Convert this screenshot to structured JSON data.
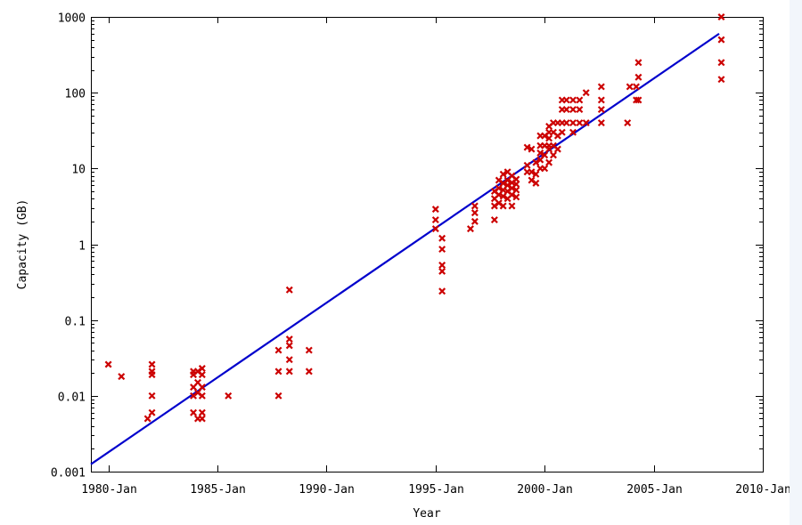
{
  "chart_data": {
    "type": "scatter",
    "title": "",
    "xlabel": "Year",
    "ylabel": "Capacity (GB)",
    "xlim": [
      1979.2,
      2010.0
    ],
    "ylim": [
      0.001,
      1000
    ],
    "y_scale": "log",
    "grid": false,
    "legend": "none",
    "x_ticks": [
      {
        "value": 1980,
        "label": "1980-Jan"
      },
      {
        "value": 1985,
        "label": "1985-Jan"
      },
      {
        "value": 1990,
        "label": "1990-Jan"
      },
      {
        "value": 1995,
        "label": "1995-Jan"
      },
      {
        "value": 2000,
        "label": "2000-Jan"
      },
      {
        "value": 2005,
        "label": "2005-Jan"
      },
      {
        "value": 2010,
        "label": "2010-Jan"
      }
    ],
    "y_ticks": [
      {
        "value": 0.001,
        "label": "0.001"
      },
      {
        "value": 0.01,
        "label": "0.01"
      },
      {
        "value": 0.1,
        "label": "0.1"
      },
      {
        "value": 1,
        "label": "1"
      },
      {
        "value": 10,
        "label": "10"
      },
      {
        "value": 100,
        "label": "100"
      },
      {
        "value": 1000,
        "label": "1000"
      }
    ],
    "series": [
      {
        "type": "scatter",
        "marker": "x",
        "color": "#cc0000",
        "points": [
          [
            1980.0,
            0.026
          ],
          [
            1980.6,
            0.018
          ],
          [
            1981.8,
            0.005
          ],
          [
            1982.0,
            0.006
          ],
          [
            1982.0,
            0.01
          ],
          [
            1982.0,
            0.019
          ],
          [
            1982.0,
            0.021
          ],
          [
            1982.0,
            0.026
          ],
          [
            1983.9,
            0.006
          ],
          [
            1983.9,
            0.01
          ],
          [
            1983.9,
            0.013
          ],
          [
            1983.9,
            0.019
          ],
          [
            1983.9,
            0.021
          ],
          [
            1984.1,
            0.005
          ],
          [
            1984.1,
            0.011
          ],
          [
            1984.1,
            0.015
          ],
          [
            1984.1,
            0.021
          ],
          [
            1984.3,
            0.005
          ],
          [
            1984.3,
            0.006
          ],
          [
            1984.3,
            0.01
          ],
          [
            1984.3,
            0.013
          ],
          [
            1984.3,
            0.019
          ],
          [
            1984.3,
            0.023
          ],
          [
            1985.5,
            0.01
          ],
          [
            1987.8,
            0.01
          ],
          [
            1987.8,
            0.021
          ],
          [
            1987.8,
            0.04
          ],
          [
            1988.3,
            0.021
          ],
          [
            1988.3,
            0.03
          ],
          [
            1988.3,
            0.046
          ],
          [
            1988.3,
            0.056
          ],
          [
            1988.3,
            0.25
          ],
          [
            1989.2,
            0.021
          ],
          [
            1989.2,
            0.04
          ],
          [
            1995.0,
            1.6
          ],
          [
            1995.0,
            2.1
          ],
          [
            1995.0,
            2.9
          ],
          [
            1995.3,
            0.24
          ],
          [
            1995.3,
            0.44
          ],
          [
            1995.3,
            0.53
          ],
          [
            1995.3,
            0.86
          ],
          [
            1995.3,
            1.2
          ],
          [
            1996.6,
            1.6
          ],
          [
            1996.8,
            2.0
          ],
          [
            1996.8,
            2.6
          ],
          [
            1996.8,
            3.2
          ],
          [
            1997.7,
            2.1
          ],
          [
            1997.7,
            3.2
          ],
          [
            1997.7,
            4.0
          ],
          [
            1997.7,
            5.0
          ],
          [
            1997.9,
            3.5
          ],
          [
            1997.9,
            4.5
          ],
          [
            1997.9,
            5.5
          ],
          [
            1997.9,
            7.0
          ],
          [
            1998.1,
            3.2
          ],
          [
            1998.1,
            4.3
          ],
          [
            1998.1,
            5.2
          ],
          [
            1998.1,
            6.4
          ],
          [
            1998.1,
            8.4
          ],
          [
            1998.3,
            4.0
          ],
          [
            1998.3,
            5.0
          ],
          [
            1998.3,
            6.0
          ],
          [
            1998.3,
            7.0
          ],
          [
            1998.3,
            9.0
          ],
          [
            1998.5,
            3.2
          ],
          [
            1998.5,
            4.5
          ],
          [
            1998.5,
            5.5
          ],
          [
            1998.5,
            6.5
          ],
          [
            1998.5,
            8.0
          ],
          [
            1998.7,
            4.2
          ],
          [
            1998.7,
            5.2
          ],
          [
            1998.7,
            6.2
          ],
          [
            1998.7,
            7.2
          ],
          [
            1999.2,
            9.0
          ],
          [
            1999.2,
            11.0
          ],
          [
            1999.2,
            19.0
          ],
          [
            1999.4,
            7.0
          ],
          [
            1999.4,
            9.0
          ],
          [
            1999.4,
            18.0
          ],
          [
            1999.6,
            6.4
          ],
          [
            1999.6,
            8.4
          ],
          [
            1999.6,
            12.0
          ],
          [
            1999.8,
            10.0
          ],
          [
            1999.8,
            13.0
          ],
          [
            1999.8,
            16.0
          ],
          [
            1999.8,
            20.0
          ],
          [
            1999.8,
            27.0
          ],
          [
            2000.0,
            10.0
          ],
          [
            2000.0,
            15.0
          ],
          [
            2000.0,
            20.0
          ],
          [
            2000.0,
            27.0
          ],
          [
            2000.2,
            12.0
          ],
          [
            2000.2,
            18.0
          ],
          [
            2000.2,
            20.0
          ],
          [
            2000.2,
            25.0
          ],
          [
            2000.2,
            30.0
          ],
          [
            2000.2,
            36.0
          ],
          [
            2000.4,
            15.0
          ],
          [
            2000.4,
            20.0
          ],
          [
            2000.4,
            30.0
          ],
          [
            2000.4,
            40.0
          ],
          [
            2000.6,
            18.0
          ],
          [
            2000.6,
            27.0
          ],
          [
            2000.6,
            40.0
          ],
          [
            2000.8,
            30.0
          ],
          [
            2000.8,
            40.0
          ],
          [
            2000.8,
            60.0
          ],
          [
            2000.8,
            80.0
          ],
          [
            2001.0,
            40.0
          ],
          [
            2001.0,
            60.0
          ],
          [
            2001.0,
            80.0
          ],
          [
            2001.3,
            30.0
          ],
          [
            2001.3,
            40.0
          ],
          [
            2001.3,
            60.0
          ],
          [
            2001.3,
            80.0
          ],
          [
            2001.6,
            40.0
          ],
          [
            2001.6,
            60.0
          ],
          [
            2001.6,
            80.0
          ],
          [
            2001.9,
            40.0
          ],
          [
            2001.9,
            100.0
          ],
          [
            2002.6,
            40.0
          ],
          [
            2002.6,
            60.0
          ],
          [
            2002.6,
            80.0
          ],
          [
            2002.6,
            120.0
          ],
          [
            2003.8,
            40.0
          ],
          [
            2003.9,
            120.0
          ],
          [
            2004.2,
            80.0
          ],
          [
            2004.2,
            120.0
          ],
          [
            2004.3,
            80.0
          ],
          [
            2004.3,
            160.0
          ],
          [
            2004.3,
            250.0
          ],
          [
            2008.1,
            150.0
          ],
          [
            2008.1,
            250.0
          ],
          [
            2008.1,
            500.0
          ],
          [
            2008.1,
            1000.0
          ]
        ]
      },
      {
        "type": "line",
        "color": "#0000cc",
        "points": [
          [
            1979.2,
            0.00125
          ],
          [
            2008.0,
            600.0
          ]
        ]
      }
    ]
  }
}
